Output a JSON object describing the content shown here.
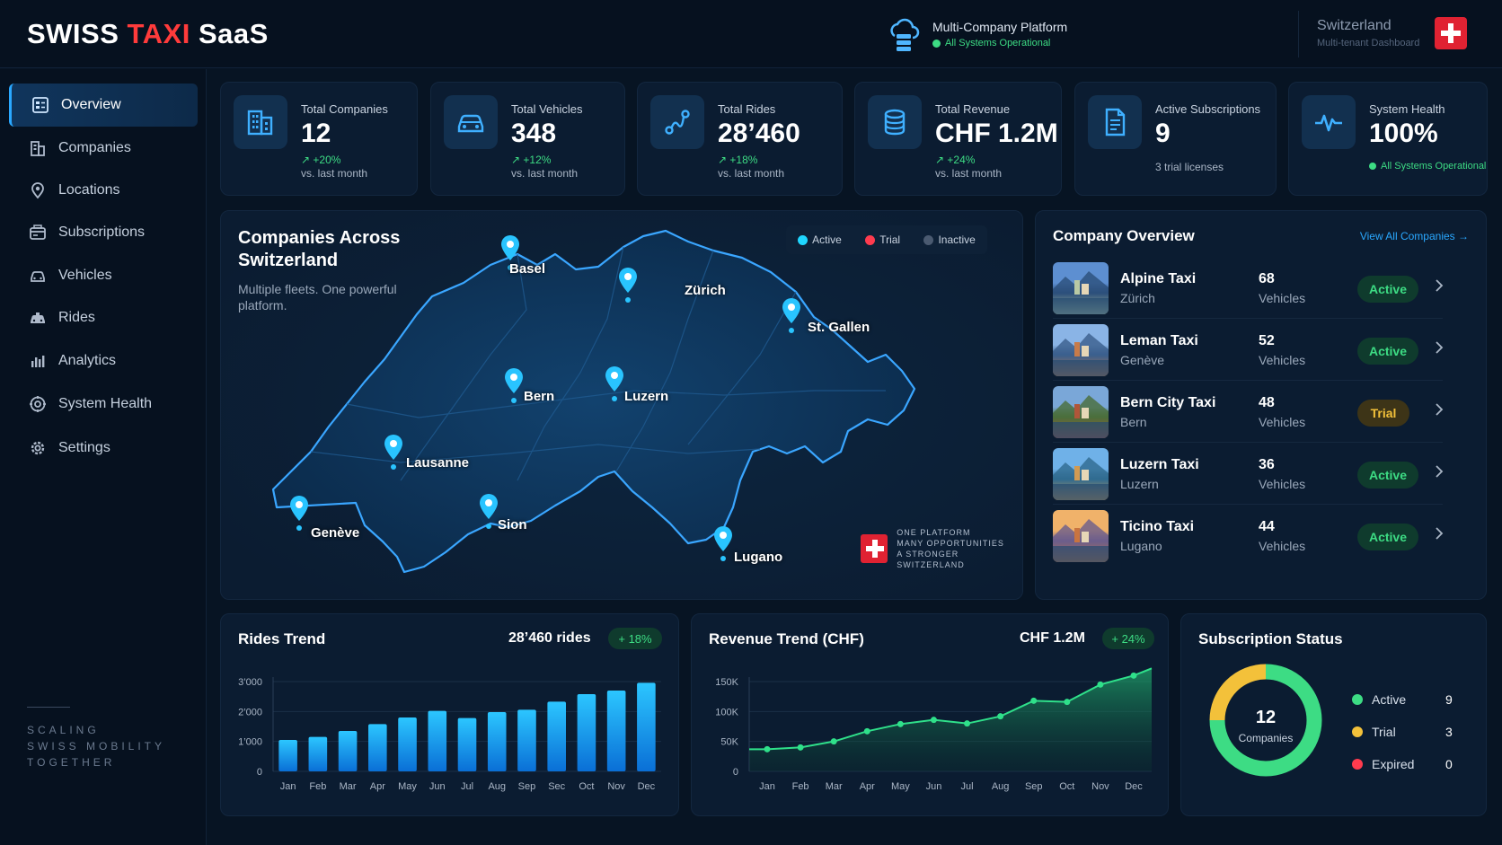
{
  "header": {
    "brand_a": "SWISS ",
    "brand_accent": "TAXI",
    "brand_b": " SaaS",
    "platform_title": "Multi-Company Platform",
    "platform_status": "All Systems Operational",
    "region_name": "Switzerland",
    "region_sub": "Multi-tenant Dashboard"
  },
  "sidebar": {
    "items": [
      {
        "label": "Overview",
        "icon": "overview-icon"
      },
      {
        "label": "Companies",
        "icon": "building-icon"
      },
      {
        "label": "Locations",
        "icon": "location-pin-icon"
      },
      {
        "label": "Subscriptions",
        "icon": "subscription-icon"
      },
      {
        "label": "Vehicles",
        "icon": "car-icon"
      },
      {
        "label": "Rides",
        "icon": "taxi-icon"
      },
      {
        "label": "Analytics",
        "icon": "bar-chart-icon"
      },
      {
        "label": "System Health",
        "icon": "health-icon"
      },
      {
        "label": "Settings",
        "icon": "gear-icon"
      }
    ],
    "tagline": [
      "SCALING",
      "SWISS MOBILITY",
      "TOGETHER"
    ]
  },
  "stats": [
    {
      "label": "Total Companies",
      "value": "12",
      "delta": "+20%",
      "sub": "vs. last month"
    },
    {
      "label": "Total Vehicles",
      "value": "348",
      "delta": "+12%",
      "sub": "vs. last month"
    },
    {
      "label": "Total Rides",
      "value": "28’460",
      "delta": "+18%",
      "sub": "vs. last month"
    },
    {
      "label": "Total Revenue",
      "value": "CHF 1.2M",
      "delta": "+24%",
      "sub": "vs. last month"
    },
    {
      "label": "Active Subscriptions",
      "value": "9",
      "sub": "3 trial licenses"
    },
    {
      "label": "System Health",
      "value": "100%",
      "sub": "All Systems Operational"
    }
  ],
  "map": {
    "title": "Companies Across Switzerland",
    "subtitle": "Multiple fleets. One powerful platform.",
    "legend": [
      "Active",
      "Trial",
      "Inactive"
    ],
    "cities": [
      "Basel",
      "Zürich",
      "St. Gallen",
      "Bern",
      "Luzern",
      "Lausanne",
      "Sion",
      "Genève",
      "Lugano"
    ],
    "badge_lines": [
      "ONE PLATFORM",
      "MANY OPPORTUNITIES",
      "A STRONGER SWITZERLAND"
    ]
  },
  "company_overview": {
    "title": "Company Overview",
    "link": "View All Companies →",
    "unit": "Vehicles",
    "rows": [
      {
        "name": "Alpine Taxi",
        "city": "Zürich",
        "vehicles": "68",
        "status": "Active"
      },
      {
        "name": "Leman Taxi",
        "city": "Genève",
        "vehicles": "52",
        "status": "Active"
      },
      {
        "name": "Bern City Taxi",
        "city": "Bern",
        "vehicles": "48",
        "status": "Trial"
      },
      {
        "name": "Luzern Taxi",
        "city": "Luzern",
        "vehicles": "36",
        "status": "Active"
      },
      {
        "name": "Ticino Taxi",
        "city": "Lugano",
        "vehicles": "44",
        "status": "Active"
      }
    ]
  },
  "rides_trend": {
    "title": "Rides Trend",
    "total": "28’460 rides",
    "delta": "+ 18%"
  },
  "revenue_trend": {
    "title": "Revenue Trend (CHF)",
    "total": "CHF 1.2M",
    "delta": "+ 24%"
  },
  "subscription_status": {
    "title": "Subscription Status",
    "center_value": "12",
    "center_label": "Companies",
    "items": [
      {
        "label": "Active",
        "value": "9"
      },
      {
        "label": "Trial",
        "value": "3"
      },
      {
        "label": "Expired",
        "value": "0"
      }
    ]
  },
  "colors": {
    "accent": "#2aa8ff",
    "active": "#3ddc84",
    "trial": "#f3c13a",
    "inactive": "#4a5a70",
    "expired": "#ff3b4e",
    "swiss_red": "#e02232"
  },
  "chart_data": [
    {
      "type": "bar",
      "title": "Rides Trend",
      "categories": [
        "Jan",
        "Feb",
        "Mar",
        "Apr",
        "May",
        "Jun",
        "Jul",
        "Aug",
        "Sep",
        "Sec",
        "Oct",
        "Nov",
        "Dec"
      ],
      "values": [
        1050,
        1150,
        1350,
        1580,
        1800,
        2020,
        1780,
        1980,
        2060,
        2330,
        2580,
        2700,
        2960
      ],
      "yticks": [
        "0",
        "1’000",
        "2’000",
        "3’000"
      ],
      "ylim": [
        0,
        3000
      ],
      "grid": true
    },
    {
      "type": "area",
      "title": "Revenue Trend (CHF)",
      "categories": [
        "Jan",
        "Feb",
        "Mar",
        "Apr",
        "May",
        "Jun",
        "Jul",
        "Aug",
        "Sep",
        "Oct",
        "Nov",
        "Dec"
      ],
      "values": [
        37000,
        40000,
        50000,
        67000,
        79000,
        86000,
        80000,
        92000,
        118000,
        116000,
        145000,
        160000
      ],
      "yticks": [
        "0",
        "50K",
        "100K",
        "150K"
      ],
      "ylim": [
        0,
        150000
      ],
      "grid": true
    },
    {
      "type": "pie",
      "title": "Subscription Status",
      "categories": [
        "Active",
        "Trial",
        "Expired"
      ],
      "values": [
        9,
        3,
        0
      ]
    }
  ]
}
